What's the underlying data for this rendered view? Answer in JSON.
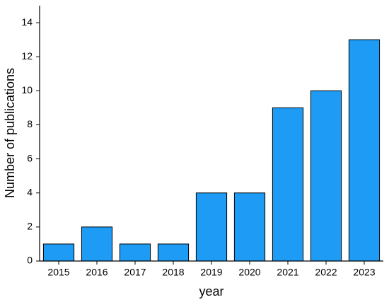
{
  "chart_data": {
    "type": "bar",
    "x_label": "year",
    "y_label": "Number of publications",
    "categories": [
      "2015",
      "2016",
      "2017",
      "2018",
      "2019",
      "2020",
      "2021",
      "2022",
      "2023"
    ],
    "values": [
      1,
      2,
      1,
      1,
      4,
      4,
      9,
      10,
      13
    ],
    "color": "#1e9cf5",
    "ylim": [
      0,
      15
    ],
    "yticks": [
      0,
      2,
      4,
      6,
      8,
      10,
      12,
      14
    ],
    "grid": false
  }
}
